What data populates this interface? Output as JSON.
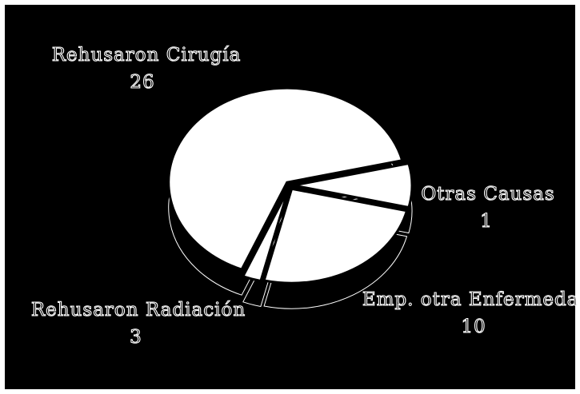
{
  "chart_data": {
    "type": "pie",
    "title": "",
    "slices": [
      {
        "label": "Rehusaron Cirugía",
        "value": 26
      },
      {
        "label": "Otras Causas",
        "value": 1
      },
      {
        "label": "Emp. otra Enfermedad",
        "value": 10
      },
      {
        "label": "Rehusaron Radiación",
        "value": 3
      }
    ],
    "value_labels": [
      "26",
      "1",
      "10",
      "3"
    ],
    "colors": {
      "background": "#000000",
      "slice_fill": "#ffffff",
      "slice_edge": "#000000",
      "label_outline": "#ffffff"
    },
    "style": "3d-exploded"
  }
}
